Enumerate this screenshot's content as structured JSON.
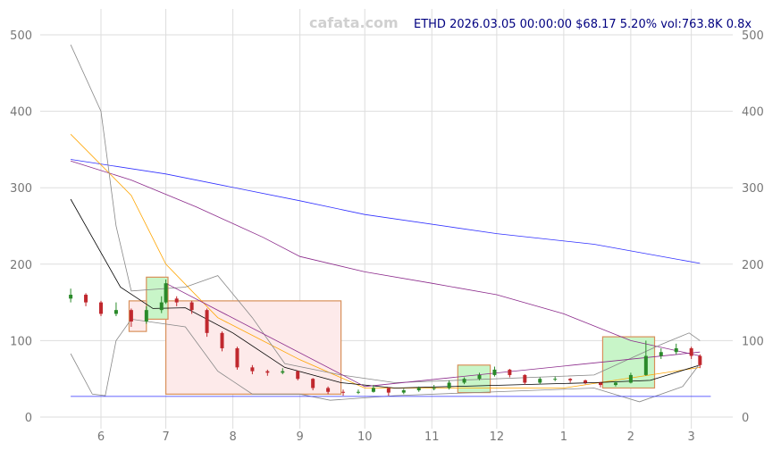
{
  "chart_data": {
    "type": "candlestick",
    "watermark": "cafata.com",
    "title": "ETHD 2026.03.05 00:00:00 $68.17 5.20% vol:763.8K 0.8x",
    "ylim": [
      0,
      540
    ],
    "yticks": [
      0,
      100,
      200,
      300,
      400,
      500
    ],
    "xticks": [
      {
        "date": "2025-06-01",
        "label": "6"
      },
      {
        "date": "2025-07-01",
        "label": "7"
      },
      {
        "date": "2025-08-01",
        "label": "8"
      },
      {
        "date": "2025-09-01",
        "label": "9"
      },
      {
        "date": "2025-10-01",
        "label": "10"
      },
      {
        "date": "2025-11-01",
        "label": "11"
      },
      {
        "date": "2025-12-01",
        "label": "12"
      },
      {
        "date": "2026-01-01",
        "label": "1"
      },
      {
        "date": "2026-02-01",
        "label": "2"
      },
      {
        "date": "2026-03-01",
        "label": "3"
      }
    ],
    "grid": true,
    "colors": {
      "up": "#2a8a2a",
      "down": "#c0282e",
      "grid": "#dddddd",
      "ma_long": "#3030ff",
      "ma_mid": "#8b2a8b",
      "ma_orange": "#ffa500",
      "ma_black": "#000000",
      "band": "#888888"
    },
    "candles": [
      [
        "2025-05-18",
        155,
        168,
        150,
        160
      ],
      [
        "2025-05-25",
        160,
        162,
        145,
        150
      ],
      [
        "2025-06-01",
        150,
        152,
        132,
        135
      ],
      [
        "2025-06-08",
        135,
        150,
        132,
        140
      ],
      [
        "2025-06-15",
        140,
        142,
        118,
        125
      ],
      [
        "2025-06-22",
        125,
        145,
        122,
        140
      ],
      [
        "2025-06-29",
        140,
        158,
        136,
        150
      ],
      [
        "2025-07-01",
        150,
        180,
        148,
        175
      ],
      [
        "2025-07-06",
        155,
        158,
        145,
        150
      ],
      [
        "2025-07-13",
        150,
        152,
        135,
        140
      ],
      [
        "2025-07-20",
        140,
        142,
        105,
        110
      ],
      [
        "2025-07-27",
        110,
        112,
        86,
        90
      ],
      [
        "2025-08-03",
        90,
        92,
        62,
        65
      ],
      [
        "2025-08-10",
        65,
        68,
        56,
        60
      ],
      [
        "2025-08-17",
        60,
        62,
        54,
        58
      ],
      [
        "2025-08-24",
        58,
        64,
        56,
        60
      ],
      [
        "2025-08-31",
        60,
        61,
        48,
        50
      ],
      [
        "2025-09-07",
        50,
        51,
        35,
        38
      ],
      [
        "2025-09-14",
        38,
        40,
        30,
        33
      ],
      [
        "2025-09-21",
        33,
        36,
        28,
        32
      ],
      [
        "2025-09-28",
        32,
        36,
        30,
        33
      ],
      [
        "2025-10-05",
        33,
        42,
        32,
        38
      ],
      [
        "2025-10-12",
        38,
        39,
        28,
        32
      ],
      [
        "2025-10-19",
        32,
        37,
        30,
        35
      ],
      [
        "2025-10-26",
        35,
        40,
        33,
        38
      ],
      [
        "2025-11-02",
        38,
        42,
        35,
        38
      ],
      [
        "2025-11-09",
        38,
        48,
        36,
        45
      ],
      [
        "2025-11-16",
        45,
        52,
        43,
        50
      ],
      [
        "2025-11-23",
        50,
        58,
        48,
        55
      ],
      [
        "2025-11-30",
        55,
        66,
        53,
        62
      ],
      [
        "2025-12-07",
        62,
        63,
        52,
        55
      ],
      [
        "2025-12-14",
        55,
        56,
        42,
        45
      ],
      [
        "2025-12-21",
        45,
        52,
        43,
        50
      ],
      [
        "2025-12-28",
        50,
        53,
        47,
        50
      ],
      [
        "2026-01-04",
        50,
        51,
        45,
        48
      ],
      [
        "2026-01-11",
        48,
        49,
        43,
        45
      ],
      [
        "2026-01-18",
        45,
        46,
        39,
        42
      ],
      [
        "2026-01-25",
        42,
        47,
        40,
        45
      ],
      [
        "2026-02-01",
        45,
        58,
        44,
        55
      ],
      [
        "2026-02-08",
        55,
        100,
        54,
        80
      ],
      [
        "2026-02-15",
        80,
        90,
        76,
        85
      ],
      [
        "2026-02-22",
        85,
        96,
        82,
        90
      ],
      [
        "2026-03-01",
        90,
        92,
        76,
        80
      ],
      [
        "2026-03-05",
        80,
        82,
        64,
        68
      ]
    ],
    "lines": [
      {
        "color": "ma_long",
        "points": [
          [
            "2025-05-18",
            337
          ],
          [
            "2025-07-01",
            318
          ],
          [
            "2025-09-01",
            283
          ],
          [
            "2025-10-01",
            265
          ],
          [
            "2025-12-01",
            240
          ],
          [
            "2026-01-15",
            226
          ],
          [
            "2026-03-05",
            201
          ]
        ]
      },
      {
        "color": "ma_mid",
        "points": [
          [
            "2025-05-18",
            335
          ],
          [
            "2025-06-15",
            310
          ],
          [
            "2025-07-15",
            275
          ],
          [
            "2025-08-15",
            235
          ],
          [
            "2025-09-01",
            210
          ],
          [
            "2025-10-01",
            190
          ],
          [
            "2025-11-01",
            175
          ],
          [
            "2025-12-01",
            160
          ],
          [
            "2026-01-01",
            135
          ],
          [
            "2026-02-01",
            100
          ],
          [
            "2026-03-05",
            80
          ]
        ]
      },
      {
        "color": "ma_orange",
        "points": [
          [
            "2025-05-18",
            370
          ],
          [
            "2025-06-15",
            290
          ],
          [
            "2025-07-01",
            200
          ],
          [
            "2025-07-25",
            130
          ],
          [
            "2025-09-01",
            75
          ],
          [
            "2025-10-01",
            38
          ],
          [
            "2026-01-01",
            38
          ],
          [
            "2026-03-05",
            65
          ]
        ]
      },
      {
        "color": "ma_black",
        "points": [
          [
            "2025-05-18",
            285
          ],
          [
            "2025-06-10",
            170
          ],
          [
            "2025-06-25",
            142
          ],
          [
            "2025-07-10",
            143
          ],
          [
            "2025-08-01",
            110
          ],
          [
            "2025-08-25",
            65
          ],
          [
            "2025-09-20",
            45
          ],
          [
            "2025-10-15",
            38
          ],
          [
            "2026-01-15",
            45
          ],
          [
            "2026-02-10",
            48
          ],
          [
            "2026-03-05",
            68
          ]
        ]
      },
      {
        "color": "band",
        "points": [
          [
            "2025-05-18",
            487
          ],
          [
            "2025-06-01",
            400
          ],
          [
            "2025-06-08",
            250
          ],
          [
            "2025-06-15",
            165
          ],
          [
            "2025-07-10",
            170
          ],
          [
            "2025-07-25",
            185
          ],
          [
            "2025-08-10",
            130
          ],
          [
            "2025-08-25",
            70
          ],
          [
            "2025-09-20",
            55
          ],
          [
            "2025-10-15",
            45
          ],
          [
            "2026-01-15",
            55
          ],
          [
            "2026-02-15",
            95
          ],
          [
            "2026-02-28",
            110
          ],
          [
            "2026-03-05",
            100
          ]
        ]
      },
      {
        "color": "band",
        "points": [
          [
            "2025-05-18",
            83
          ],
          [
            "2025-05-28",
            30
          ],
          [
            "2025-06-03",
            28
          ],
          [
            "2025-06-08",
            100
          ],
          [
            "2025-06-15",
            128
          ],
          [
            "2025-07-10",
            118
          ],
          [
            "2025-07-25",
            60
          ],
          [
            "2025-08-10",
            30
          ],
          [
            "2025-09-01",
            30
          ],
          [
            "2025-09-15",
            22
          ],
          [
            "2025-10-15",
            28
          ],
          [
            "2026-01-15",
            38
          ],
          [
            "2026-02-05",
            20
          ],
          [
            "2026-02-25",
            40
          ],
          [
            "2026-03-05",
            70
          ]
        ]
      },
      {
        "color": "ma_long",
        "points": [
          [
            "2025-05-18",
            27
          ],
          [
            "2026-03-10",
            27
          ]
        ]
      },
      {
        "color": "ma_mid",
        "points": [
          [
            "2025-07-01",
            175
          ],
          [
            "2025-10-01",
            40
          ]
        ]
      },
      {
        "color": "ma_mid",
        "points": [
          [
            "2025-10-01",
            40
          ],
          [
            "2026-03-05",
            85
          ]
        ]
      }
    ],
    "zones": [
      {
        "from": "2025-07-01",
        "to": "2025-09-20",
        "low": 30,
        "high": 152,
        "fill": "#fdeaea",
        "stroke": "#d8905a"
      },
      {
        "from": "2025-06-22",
        "to": "2025-07-02",
        "low": 128,
        "high": 183,
        "fill": "#c8f5c8",
        "stroke": "#d8905a"
      },
      {
        "from": "2025-06-14",
        "to": "2025-06-22",
        "low": 112,
        "high": 152,
        "fill": "#fdeaea",
        "stroke": "#d8905a"
      },
      {
        "from": "2025-11-13",
        "to": "2025-11-28",
        "low": 32,
        "high": 68,
        "fill": "#c8f5c8",
        "stroke": "#d8905a"
      },
      {
        "from": "2026-01-19",
        "to": "2026-02-12",
        "low": 38,
        "high": 105,
        "fill": "#c8f5c8",
        "stroke": "#d8905a"
      }
    ]
  }
}
